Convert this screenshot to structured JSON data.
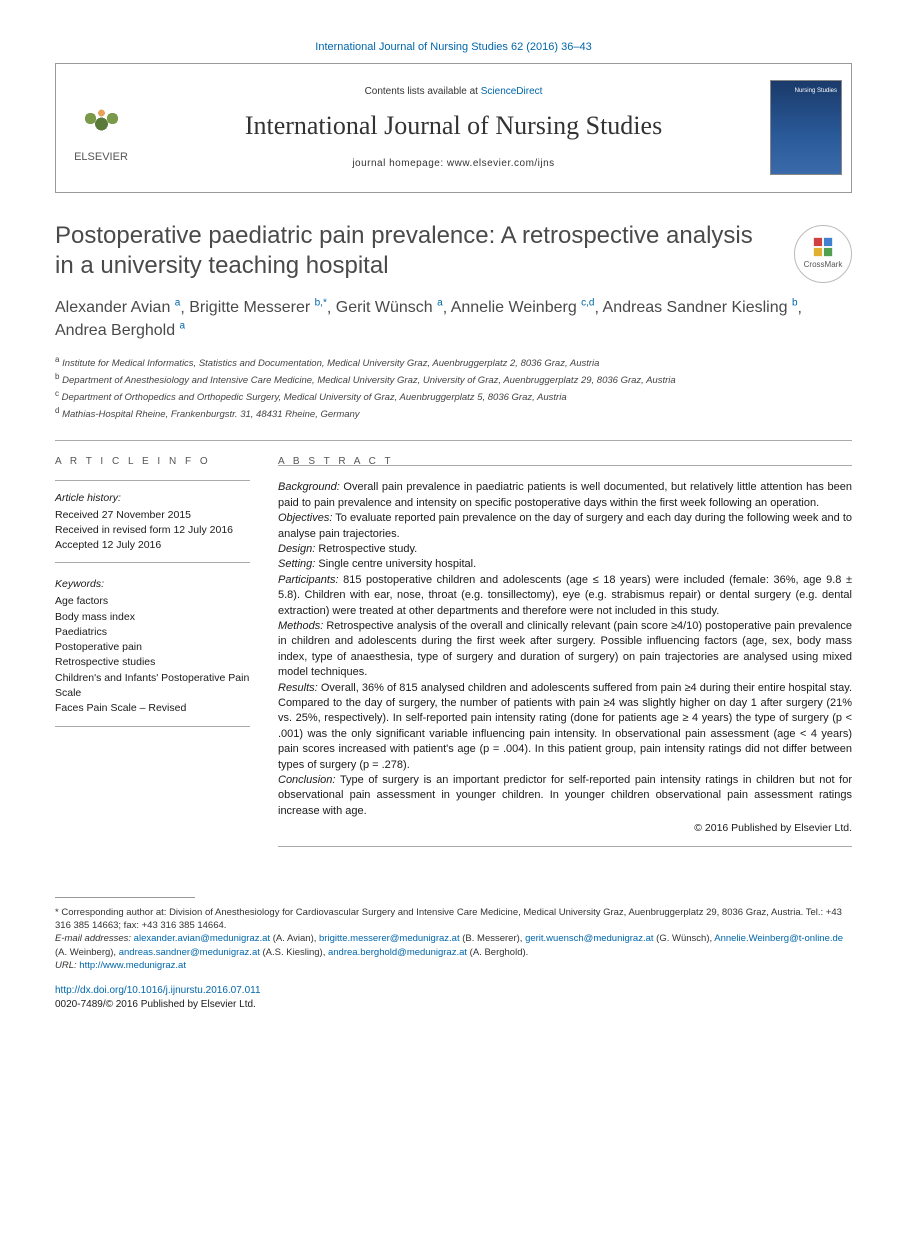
{
  "citation": "International Journal of Nursing Studies 62 (2016) 36–43",
  "header": {
    "publisher": "ELSEVIER",
    "contents_prefix": "Contents lists available at ",
    "contents_link": "ScienceDirect",
    "journal": "International Journal of Nursing Studies",
    "homepage_label": "journal homepage: www.elsevier.com/ijns",
    "cover_text": "Nursing Studies"
  },
  "title": "Postoperative paediatric pain prevalence: A retrospective analysis in a university teaching hospital",
  "crossmark": "CrossMark",
  "authors": [
    {
      "name": "Alexander Avian",
      "sup": "a"
    },
    {
      "name": "Brigitte Messerer",
      "sup": "b,*"
    },
    {
      "name": "Gerit Wünsch",
      "sup": "a"
    },
    {
      "name": "Annelie Weinberg",
      "sup": "c,d"
    },
    {
      "name": "Andreas Sandner Kiesling",
      "sup": "b"
    },
    {
      "name": "Andrea Berghold",
      "sup": "a"
    }
  ],
  "affiliations": [
    {
      "sup": "a",
      "text": "Institute for Medical Informatics, Statistics and Documentation, Medical University Graz, Auenbruggerplatz 2, 8036 Graz, Austria"
    },
    {
      "sup": "b",
      "text": "Department of Anesthesiology and Intensive Care Medicine, Medical University Graz, University of Graz, Auenbruggerplatz 29, 8036 Graz, Austria"
    },
    {
      "sup": "c",
      "text": "Department of Orthopedics and Orthopedic Surgery, Medical University of Graz, Auenbruggerplatz 5, 8036 Graz, Austria"
    },
    {
      "sup": "d",
      "text": "Mathias-Hospital Rheine, Frankenburgstr. 31, 48431 Rheine, Germany"
    }
  ],
  "article_info_label": "A R T I C L E   I N F O",
  "abstract_label": "A B S T R A C T",
  "history": {
    "label": "Article history:",
    "received": "Received 27 November 2015",
    "revised": "Received in revised form 12 July 2016",
    "accepted": "Accepted 12 July 2016"
  },
  "keywords": {
    "label": "Keywords:",
    "items": [
      "Age factors",
      "Body mass index",
      "Paediatrics",
      "Postoperative pain",
      "Retrospective studies",
      "Children's and Infants' Postoperative Pain Scale",
      "Faces Pain Scale – Revised"
    ]
  },
  "abstract": {
    "background_label": "Background:",
    "background": "Overall pain prevalence in paediatric patients is well documented, but relatively little attention has been paid to pain prevalence and intensity on specific postoperative days within the first week following an operation.",
    "objectives_label": "Objectives:",
    "objectives": "To evaluate reported pain prevalence on the day of surgery and each day during the following week and to analyse pain trajectories.",
    "design_label": "Design:",
    "design": "Retrospective study.",
    "setting_label": "Setting:",
    "setting": "Single centre university hospital.",
    "participants_label": "Participants:",
    "participants": "815 postoperative children and adolescents (age ≤ 18 years) were included (female: 36%, age 9.8 ± 5.8). Children with ear, nose, throat (e.g. tonsillectomy), eye (e.g. strabismus repair) or dental surgery (e.g. dental extraction) were treated at other departments and therefore were not included in this study.",
    "methods_label": "Methods:",
    "methods": "Retrospective analysis of the overall and clinically relevant (pain score ≥4/10) postoperative pain prevalence in children and adolescents during the first week after surgery. Possible influencing factors (age, sex, body mass index, type of anaesthesia, type of surgery and duration of surgery) on pain trajectories are analysed using mixed model techniques.",
    "results_label": "Results:",
    "results": "Overall, 36% of 815 analysed children and adolescents suffered from pain ≥4 during their entire hospital stay. Compared to the day of surgery, the number of patients with pain ≥4 was slightly higher on day 1 after surgery (21% vs. 25%, respectively). In self-reported pain intensity rating (done for patients age ≥ 4 years) the type of surgery (p < .001) was the only significant variable influencing pain intensity. In observational pain assessment (age < 4 years) pain scores increased with patient's age (p = .004). In this patient group, pain intensity ratings did not differ between types of surgery (p = .278).",
    "conclusion_label": "Conclusion:",
    "conclusion": "Type of surgery is an important predictor for self-reported pain intensity ratings in children but not for observational pain assessment in younger children. In younger children observational pain assessment ratings increase with age.",
    "copyright": "© 2016 Published by Elsevier Ltd."
  },
  "footnotes": {
    "corresponding": "* Corresponding author at: Division of Anesthesiology for Cardiovascular Surgery and Intensive Care Medicine, Medical University Graz, Auenbruggerplatz 29, 8036 Graz, Austria. Tel.: +43 316 385 14663; fax: +43 316 385 14664.",
    "emails_label": "E-mail addresses:",
    "emails": [
      {
        "email": "alexander.avian@medunigraz.at",
        "name": "(A. Avian)"
      },
      {
        "email": "brigitte.messerer@medunigraz.at",
        "name": "(B. Messerer)"
      },
      {
        "email": "gerit.wuensch@medunigraz.at",
        "name": "(G. Wünsch)"
      },
      {
        "email": "Annelie.Weinberg@t-online.de",
        "name": "(A. Weinberg)"
      },
      {
        "email": "andreas.sandner@medunigraz.at",
        "name": "(A.S. Kiesling)"
      },
      {
        "email": "andrea.berghold@medunigraz.at",
        "name": "(A. Berghold)"
      }
    ],
    "url_label": "URL:",
    "url": "http://www.medunigraz.at"
  },
  "doi": {
    "link": "http://dx.doi.org/10.1016/j.ijnurstu.2016.07.011",
    "issn_line": "0020-7489/© 2016 Published by Elsevier Ltd."
  }
}
